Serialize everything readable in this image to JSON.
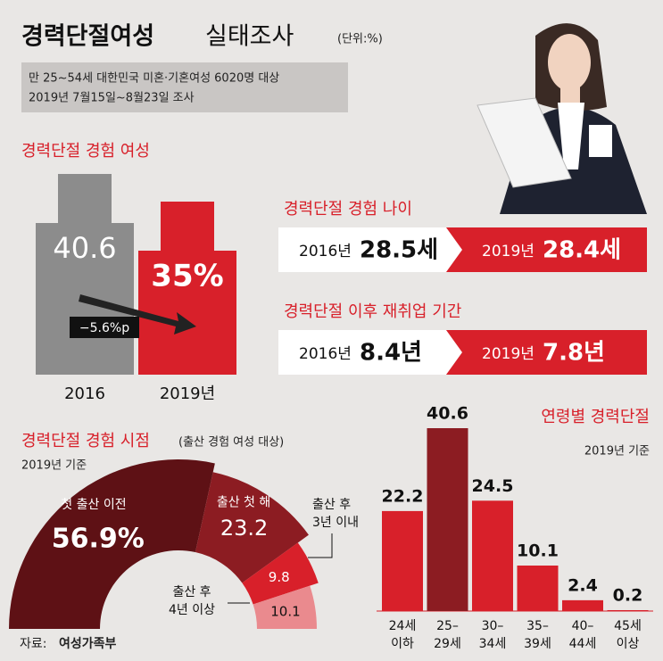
{
  "header": {
    "title": "경력단절여성",
    "title2": "실태조사",
    "unit": "(단위:%)",
    "lines": [
      "만 25~54세 대한민국 미혼·기혼여성 6020명 대상",
      "2019년 7월15일~8월23일 조사"
    ]
  },
  "panels": [
    {
      "title": "경력단절 경험 나이",
      "items": [
        {
          "year": "2016년",
          "value": "28.5세"
        },
        {
          "year": "2019년",
          "value": "28.4세"
        }
      ]
    },
    {
      "title": "경력단절 이후 재취업 기간",
      "items": [
        {
          "year": "2016년",
          "value": "8.4년"
        },
        {
          "year": "2019년",
          "value": "7.8년"
        }
      ]
    }
  ],
  "chart_data": [
    {
      "type": "block-bar",
      "title": "경력단절 경험 여성",
      "categories": [
        "2016",
        "2019년"
      ],
      "values": [
        40.6,
        35
      ],
      "value_labels": [
        "40.6",
        "35%"
      ],
      "colors": [
        "#8c8c8c",
        "#d8202a"
      ],
      "annotation": "−5.6%p"
    },
    {
      "type": "half-donut",
      "title": "경력단절 경험 시점",
      "subtitle": "(출산 경험 여성 대상)",
      "note": "2019년 기준",
      "categories": [
        [
          "첫 출산 이전"
        ],
        [
          "출산 첫 해"
        ],
        [
          "출산 후",
          "3년 이내"
        ],
        [
          "출산 후",
          "4년 이상"
        ]
      ],
      "values": [
        56.9,
        23.2,
        9.8,
        10.1
      ],
      "value_labels": [
        "56.9%",
        "23.2",
        "9.8",
        "10.1"
      ],
      "colors": [
        "#5e1115",
        "#8c1c22",
        "#d8202a",
        "#ea8a8e"
      ]
    },
    {
      "type": "bar",
      "title": "연령별 경력단절",
      "note": "2019년 기준",
      "categories": [
        [
          "24세",
          "이하"
        ],
        [
          "25–",
          "29세"
        ],
        [
          "30–",
          "34세"
        ],
        [
          "35–",
          "39세"
        ],
        [
          "40–",
          "44세"
        ],
        [
          "45세",
          "이상"
        ]
      ],
      "values": [
        22.2,
        40.6,
        24.5,
        10.1,
        2.4,
        0.2
      ],
      "colors": [
        "#d8202a",
        "#8c1c22",
        "#d8202a",
        "#d8202a",
        "#d8202a",
        "#d8202a"
      ]
    }
  ],
  "source": {
    "label": "자료:",
    "org": "여성가족부"
  }
}
